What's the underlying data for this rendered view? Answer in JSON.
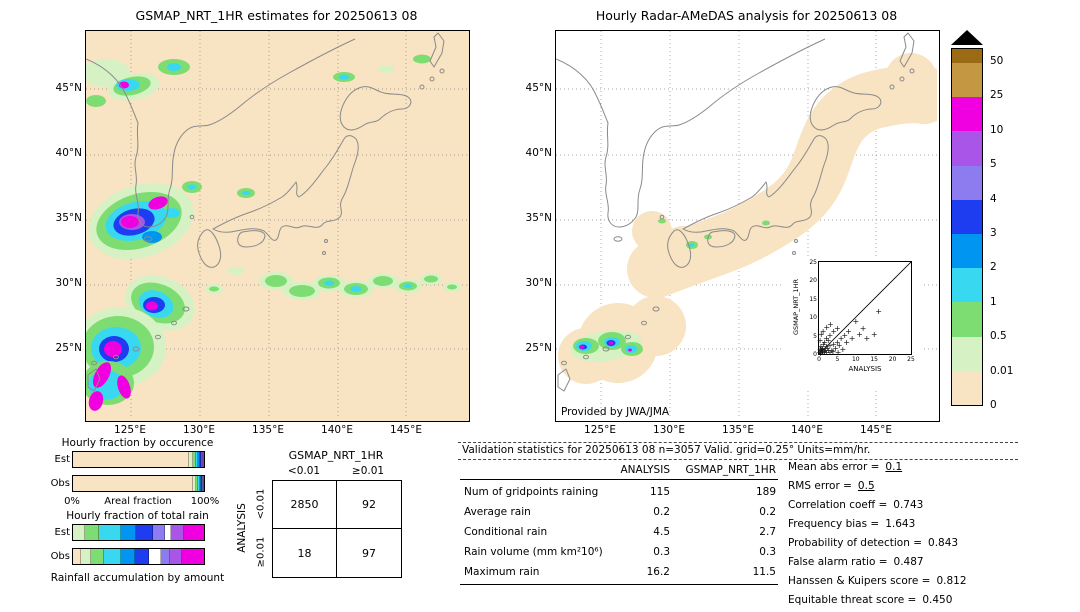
{
  "palette": {
    "beige": "#f8e3c2",
    "pale_green": "#d6f2c4",
    "green": "#7edd72",
    "light_cyan": "#38d9f0",
    "cyan": "#0095f0",
    "blue": "#1e3cf0",
    "periwinkle": "#8c7cf0",
    "violet": "#a855e8",
    "magenta": "#f000e0",
    "tan": "#c49742",
    "brown": "#9a6a14",
    "overflow": "#000000"
  },
  "left_map": {
    "title": "GSMAP_NRT_1HR estimates for 20250613 08",
    "lat_ticks": [
      "45°N",
      "40°N",
      "35°N",
      "30°N",
      "25°N"
    ],
    "lon_ticks": [
      "125°E",
      "130°E",
      "135°E",
      "140°E",
      "145°E"
    ]
  },
  "right_map": {
    "title": "Hourly Radar-AMeDAS analysis for 20250613 08",
    "credit": "Provided by JWA/JMA",
    "lat_ticks": [
      "45°N",
      "40°N",
      "35°N",
      "30°N",
      "25°N"
    ],
    "lon_ticks": [
      "125°E",
      "130°E",
      "135°E",
      "140°E",
      "145°E"
    ],
    "inset": {
      "xlabel": "ANALYSIS",
      "ylabel": "GSMAP_NRT_1HR",
      "ticks": [
        "0",
        "5",
        "10",
        "15",
        "20",
        "25"
      ]
    }
  },
  "colorbar": {
    "labels": [
      "50",
      "25",
      "10",
      "5",
      "4",
      "3",
      "2",
      "1",
      "0.5",
      "0.01",
      "0"
    ],
    "segments": [
      {
        "level": ">50",
        "color": "#9a6a14"
      },
      {
        "level": "25-50",
        "color": "#c49742"
      },
      {
        "level": "10-25",
        "color": "#f000e0"
      },
      {
        "level": "5-10",
        "color": "#a855e8"
      },
      {
        "level": "4-5",
        "color": "#8c7cf0"
      },
      {
        "level": "3-4",
        "color": "#1e3cf0"
      },
      {
        "level": "2-3",
        "color": "#0095f0"
      },
      {
        "level": "1-2",
        "color": "#38d9f0"
      },
      {
        "level": "0.5-1",
        "color": "#7edd72"
      },
      {
        "level": "0.01-0.5",
        "color": "#d6f2c4"
      },
      {
        "level": "0-0.01",
        "color": "#f8e3c2"
      }
    ]
  },
  "fractions": {
    "occurrence_title": "Hourly fraction by occurence",
    "total_title": "Hourly fraction of total rain",
    "accum_title": "Rainfall accumulation by amount",
    "est_label": "Est",
    "obs_label": "Obs",
    "axis_left": "0%",
    "axis_center": "Areal fraction",
    "axis_right": "100%",
    "occurrence": {
      "est": [
        {
          "color": "#f8e3c2",
          "pct": 88.5
        },
        {
          "color": "#d6f2c4",
          "pct": 3.0
        },
        {
          "color": "#7edd72",
          "pct": 2.2
        },
        {
          "color": "#38d9f0",
          "pct": 1.8
        },
        {
          "color": "#0095f0",
          "pct": 1.3
        },
        {
          "color": "#1e3cf0",
          "pct": 1.1
        },
        {
          "color": "#8c7cf0",
          "pct": 0.7
        },
        {
          "color": "#a855e8",
          "pct": 0.7
        },
        {
          "color": "#f000e0",
          "pct": 0.7
        }
      ],
      "obs": [
        {
          "color": "#f8e3c2",
          "pct": 92.4
        },
        {
          "color": "#d6f2c4",
          "pct": 2.4
        },
        {
          "color": "#7edd72",
          "pct": 1.6
        },
        {
          "color": "#38d9f0",
          "pct": 1.1
        },
        {
          "color": "#0095f0",
          "pct": 0.8
        },
        {
          "color": "#1e3cf0",
          "pct": 0.6
        },
        {
          "color": "#8c7cf0",
          "pct": 0.4
        },
        {
          "color": "#a855e8",
          "pct": 0.4
        },
        {
          "color": "#f000e0",
          "pct": 0.3
        }
      ]
    },
    "total": {
      "est": [
        {
          "color": "#d6f2c4",
          "pct": 9
        },
        {
          "color": "#7edd72",
          "pct": 11
        },
        {
          "color": "#38d9f0",
          "pct": 17
        },
        {
          "color": "#0095f0",
          "pct": 11
        },
        {
          "color": "#1e3cf0",
          "pct": 13
        },
        {
          "color": "#8c7cf0",
          "pct": 9
        },
        {
          "color": "#ffffff",
          "pct": 5
        },
        {
          "color": "#a855e8",
          "pct": 10
        },
        {
          "color": "#f000e0",
          "pct": 15
        }
      ],
      "obs": [
        {
          "color": "#f8e3c2",
          "pct": 6
        },
        {
          "color": "#d6f2c4",
          "pct": 8
        },
        {
          "color": "#7edd72",
          "pct": 10
        },
        {
          "color": "#38d9f0",
          "pct": 13
        },
        {
          "color": "#0095f0",
          "pct": 10
        },
        {
          "color": "#1e3cf0",
          "pct": 11
        },
        {
          "color": "#ffffff",
          "pct": 9
        },
        {
          "color": "#8c7cf0",
          "pct": 7
        },
        {
          "color": "#a855e8",
          "pct": 9
        },
        {
          "color": "#f000e0",
          "pct": 17
        }
      ]
    }
  },
  "contingency": {
    "title": "GSMAP_NRT_1HR",
    "row_axis": "ANALYSIS",
    "col_labels": [
      "<0.01",
      "≥0.01"
    ],
    "row_labels": [
      "<0.01",
      "≥0.01"
    ],
    "cells": [
      [
        "2850",
        "92"
      ],
      [
        "18",
        "97"
      ]
    ]
  },
  "stats": {
    "header": "Validation statistics for 20250613 08  n=3057 Valid. grid=0.25° Units=mm/hr.",
    "col1": "ANALYSIS",
    "col2": "GSMAP_NRT_1HR",
    "rows": [
      {
        "label": "Num of gridpoints raining",
        "a": "115",
        "g": "189"
      },
      {
        "label": "Average rain",
        "a": "0.2",
        "g": "0.2"
      },
      {
        "label": "Conditional rain",
        "a": "4.5",
        "g": "2.7"
      },
      {
        "label": "Rain volume (mm km²10⁶)",
        "a": "0.3",
        "g": "0.3"
      },
      {
        "label": "Maximum rain",
        "a": "16.2",
        "g": "11.5"
      }
    ],
    "metrics": [
      {
        "label": "Mean abs error =",
        "value": "0.1"
      },
      {
        "label": "RMS error =",
        "value": "0.5"
      },
      {
        "label": "Correlation coeff =",
        "value": "0.743"
      },
      {
        "label": "Frequency bias =",
        "value": "1.643"
      },
      {
        "label": "Probability of detection =",
        "value": "0.843"
      },
      {
        "label": "False alarm ratio =",
        "value": "0.487"
      },
      {
        "label": "Hanssen & Kuipers score =",
        "value": "0.812"
      },
      {
        "label": "Equitable threat score =",
        "value": "0.450"
      }
    ]
  },
  "chart_data": [
    {
      "type": "heatmap",
      "name": "gsmap_precipitation_map",
      "title": "GSMAP_NRT_1HR estimates for 20250613 08",
      "x_ticks": [
        "125°E",
        "130°E",
        "135°E",
        "140°E",
        "145°E"
      ],
      "y_ticks": [
        "25°N",
        "30°N",
        "35°N",
        "40°N",
        "45°N"
      ],
      "units": "mm/hr",
      "levels": [
        0,
        0.01,
        0.5,
        1,
        2,
        3,
        4,
        5,
        10,
        25,
        50
      ],
      "level_colors": [
        "#f8e3c2",
        "#d6f2c4",
        "#7edd72",
        "#38d9f0",
        "#0095f0",
        "#1e3cf0",
        "#8c7cf0",
        "#a855e8",
        "#f000e0",
        "#c49742",
        "#9a6a14"
      ],
      "legend_position": "right"
    },
    {
      "type": "heatmap",
      "name": "radar_amedas_precipitation_map",
      "title": "Hourly Radar-AMeDAS analysis for 20250613 08",
      "credit": "Provided by JWA/JMA",
      "x_ticks": [
        "125°E",
        "130°E",
        "135°E",
        "140°E",
        "145°E"
      ],
      "y_ticks": [
        "25°N",
        "30°N",
        "35°N",
        "40°N",
        "45°N"
      ],
      "units": "mm/hr",
      "levels": [
        0,
        0.01,
        0.5,
        1,
        2,
        3,
        4,
        5,
        10,
        25,
        50
      ]
    },
    {
      "type": "scatter",
      "name": "gsmap_vs_analysis_inset",
      "xlabel": "ANALYSIS",
      "ylabel": "GSMAP_NRT_1HR",
      "xlim": [
        0,
        25
      ],
      "ylim": [
        0,
        25
      ],
      "diagonal": true,
      "points": [
        [
          0.2,
          0.3
        ],
        [
          0.3,
          1.2
        ],
        [
          0.4,
          0.6
        ],
        [
          0.5,
          2.1
        ],
        [
          0.6,
          0.9
        ],
        [
          0.8,
          1.6
        ],
        [
          1,
          0.3
        ],
        [
          1,
          1.1
        ],
        [
          1.2,
          2.6
        ],
        [
          1.5,
          0.6
        ],
        [
          1.5,
          3.2
        ],
        [
          1.8,
          1
        ],
        [
          2,
          0.4
        ],
        [
          2,
          2.1
        ],
        [
          2,
          4.2
        ],
        [
          2.3,
          1.5
        ],
        [
          2.5,
          3.6
        ],
        [
          3,
          0.5
        ],
        [
          3,
          2.2
        ],
        [
          3,
          5.1
        ],
        [
          3.5,
          1
        ],
        [
          4,
          2.6
        ],
        [
          4,
          6.2
        ],
        [
          4.5,
          1.5
        ],
        [
          5,
          3.1
        ],
        [
          5,
          7
        ],
        [
          5.5,
          2.2
        ],
        [
          6,
          4.1
        ],
        [
          6.5,
          1.2
        ],
        [
          7,
          5
        ],
        [
          7.5,
          3.2
        ],
        [
          8,
          6.1
        ],
        [
          9,
          4.2
        ],
        [
          10,
          8.8
        ],
        [
          11,
          5.2
        ],
        [
          12,
          7
        ],
        [
          13,
          4.1
        ],
        [
          15,
          5.2
        ],
        [
          16.2,
          11.5
        ],
        [
          0.3,
          3.8
        ],
        [
          0.6,
          5.2
        ],
        [
          1.1,
          6.1
        ],
        [
          2.1,
          7.2
        ],
        [
          3.1,
          8.1
        ],
        [
          0.4,
          0.2
        ],
        [
          0.9,
          0.4
        ],
        [
          1.4,
          0.8
        ],
        [
          2.6,
          0.9
        ],
        [
          3.8,
          0.7
        ],
        [
          5.2,
          0.5
        ]
      ]
    },
    {
      "type": "table",
      "name": "contingency_table",
      "title": "GSMAP_NRT_1HR vs ANALYSIS contingency",
      "col_axis": "GSMAP_NRT_1HR",
      "row_axis": "ANALYSIS",
      "columns": [
        "<0.01",
        "≥0.01"
      ],
      "row_labels": [
        "<0.01",
        "≥0.01"
      ],
      "values": [
        [
          2850,
          92
        ],
        [
          18,
          97
        ]
      ]
    },
    {
      "type": "table",
      "name": "validation_statistics",
      "title": "Validation statistics for 20250613 08",
      "n": 3057,
      "valid_grid": "0.25°",
      "units": "mm/hr",
      "columns": [
        "ANALYSIS",
        "GSMAP_NRT_1HR"
      ],
      "rows": [
        [
          "Num of gridpoints raining",
          115,
          189
        ],
        [
          "Average rain",
          0.2,
          0.2
        ],
        [
          "Conditional rain",
          4.5,
          2.7
        ],
        [
          "Rain volume (mm km²10⁶)",
          0.3,
          0.3
        ],
        [
          "Maximum rain",
          16.2,
          11.5
        ]
      ],
      "metrics": {
        "Mean abs error": 0.1,
        "RMS error": 0.5,
        "Correlation coeff": 0.743,
        "Frequency bias": 1.643,
        "Probability of detection": 0.843,
        "False alarm ratio": 0.487,
        "Hanssen & Kuipers score": 0.812,
        "Equitable threat score": 0.45
      }
    },
    {
      "type": "bar",
      "name": "hourly_fraction_by_occurrence",
      "stacked": true,
      "categories": [
        "Est",
        "Obs"
      ],
      "axis_label": "Areal fraction",
      "axis_range_pct": [
        0,
        100
      ],
      "series_note": "segment percentages per rain-intensity class, see fractions.occurrence"
    },
    {
      "type": "bar",
      "name": "hourly_fraction_of_total_rain",
      "stacked": true,
      "categories": [
        "Est",
        "Obs"
      ],
      "series_note": "segment percentages per rain-intensity class, see fractions.total"
    }
  ]
}
